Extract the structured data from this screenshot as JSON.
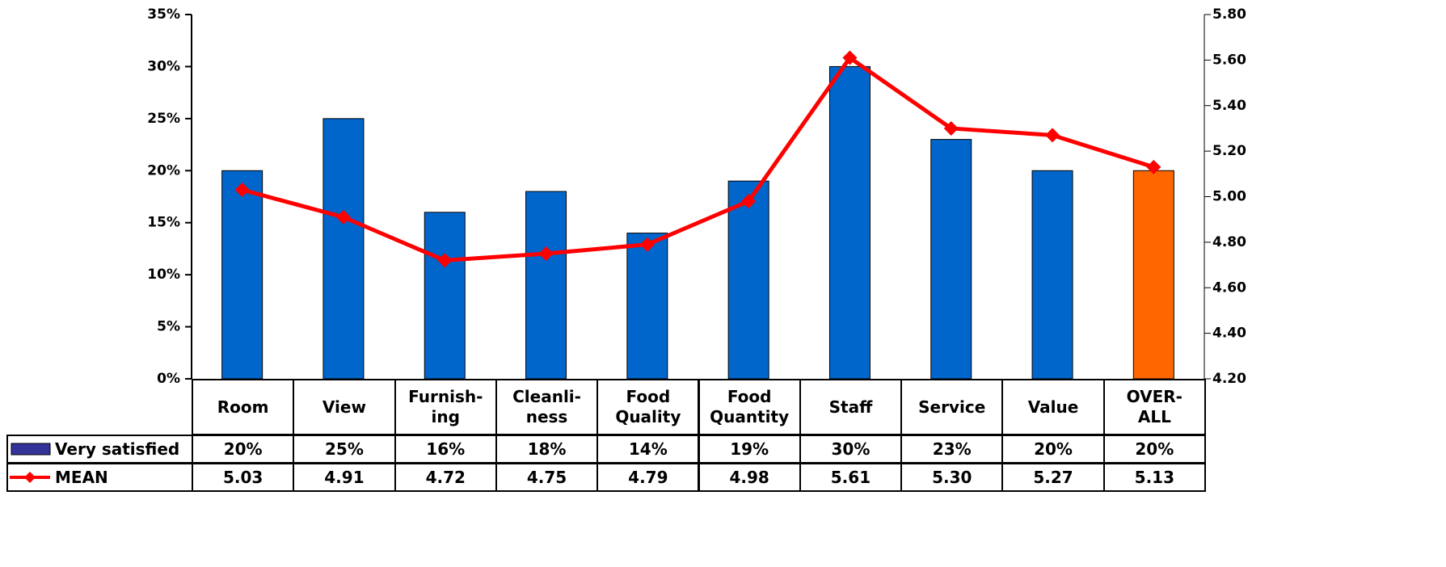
{
  "chart_data": {
    "type": "bar",
    "categories": [
      "Room",
      "View",
      "Furnish-\ning",
      "Cleanli-\nness",
      "Food\nQuality",
      "Food\nQuantity",
      "Staff",
      "Service",
      "Value",
      "OVER-\nALL"
    ],
    "series": [
      {
        "name": "Very satisfied",
        "type": "bar",
        "color": "#0066cc",
        "legend_color": "#333399",
        "point_colors": [
          "#0066cc",
          "#0066cc",
          "#0066cc",
          "#0066cc",
          "#0066cc",
          "#0066cc",
          "#0066cc",
          "#0066cc",
          "#0066cc",
          "#ff6600"
        ],
        "values": [
          20,
          25,
          16,
          18,
          14,
          19,
          30,
          23,
          20,
          20
        ],
        "value_labels": [
          "20%",
          "25%",
          "16%",
          "18%",
          "14%",
          "19%",
          "30%",
          "23%",
          "20%",
          "20%"
        ]
      },
      {
        "name": "MEAN",
        "type": "line",
        "axis": "y2",
        "color": "#ff0000",
        "values": [
          5.03,
          4.91,
          4.72,
          4.75,
          4.79,
          4.98,
          5.61,
          5.3,
          5.27,
          5.13
        ],
        "value_labels": [
          "5.03",
          "4.91",
          "4.72",
          "4.75",
          "4.79",
          "4.98",
          "5.61",
          "5.30",
          "5.27",
          "5.13"
        ]
      }
    ],
    "ylim": [
      0,
      35
    ],
    "yticks": [
      {
        "value": 0,
        "label": "0%"
      },
      {
        "value": 5,
        "label": "5%"
      },
      {
        "value": 10,
        "label": "10%"
      },
      {
        "value": 15,
        "label": "15%"
      },
      {
        "value": 20,
        "label": "20%"
      },
      {
        "value": 25,
        "label": "25%"
      },
      {
        "value": 30,
        "label": "30%"
      },
      {
        "value": 35,
        "label": "35%"
      }
    ],
    "y2lim": [
      4.2,
      5.8
    ],
    "y2ticks": [
      {
        "value": 4.2,
        "label": "4.20"
      },
      {
        "value": 4.4,
        "label": "4.40"
      },
      {
        "value": 4.6,
        "label": "4.60"
      },
      {
        "value": 4.8,
        "label": "4.80"
      },
      {
        "value": 5.0,
        "label": "5.00"
      },
      {
        "value": 5.2,
        "label": "5.20"
      },
      {
        "value": 5.4,
        "label": "5.40"
      },
      {
        "value": 5.6,
        "label": "5.60"
      },
      {
        "value": 5.8,
        "label": "5.80"
      }
    ]
  }
}
